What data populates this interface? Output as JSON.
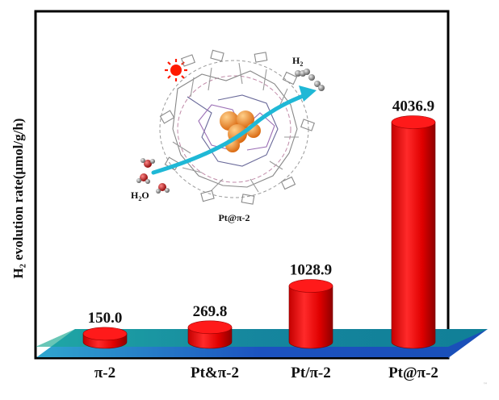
{
  "chart_data": {
    "type": "bar",
    "categories": [
      "π-2",
      "Pt&π-2",
      "Pt/π-2",
      "Pt@π-2"
    ],
    "values": [
      150.0,
      269.8,
      1028.9,
      4036.9
    ],
    "value_labels": [
      "150.0",
      "269.8",
      "1028.9",
      "4036.9"
    ],
    "ylabel": "H₂ evolution rate(μmol/g/h)",
    "ylim": [
      0,
      4800
    ],
    "bar_color": "#ff1a1a",
    "floor_colors": [
      "#2aa1c6",
      "#1a4fb8",
      "#0fa58a"
    ],
    "bar_style": "3d-cylinder"
  },
  "inset": {
    "caption": "Pt@π-2",
    "h2_label": "H",
    "h2_sub": "2",
    "water_label": "H",
    "water_sub": "2",
    "water_tail": "O",
    "sun_color": "#ff1a00",
    "arrow_color": "#1fb8d6",
    "cluster_color": "#f08a1a"
  },
  "watermark": "™"
}
